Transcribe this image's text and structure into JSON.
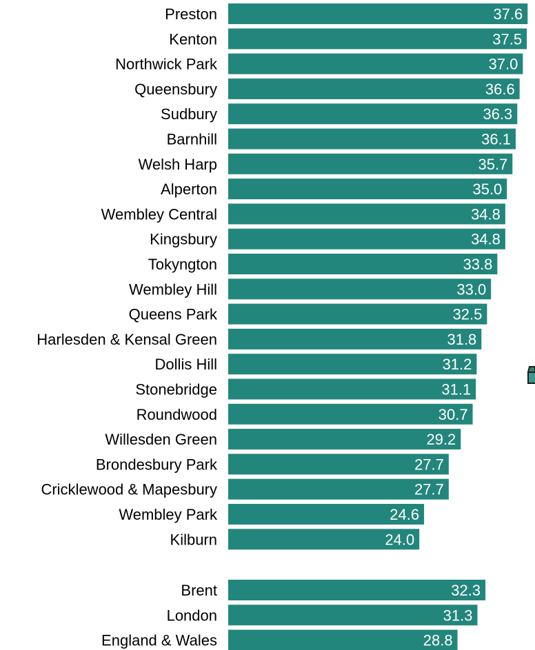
{
  "chart_data": {
    "type": "bar",
    "orientation": "horizontal",
    "bar_color": "#23867c",
    "value_label_color": "#ffffff",
    "grid": false,
    "legend": "none",
    "xlim": [
      0,
      40
    ],
    "groups": [
      {
        "categories": [
          "Preston",
          "Kenton",
          "Northwick Park",
          "Queensbury",
          "Sudbury",
          "Barnhill",
          "Welsh Harp",
          "Alperton",
          "Wembley Central",
          "Kingsbury",
          "Tokyngton",
          "Wembley Hill",
          "Queens Park",
          "Harlesden & Kensal Green",
          "Dollis Hill",
          "Stonebridge",
          "Roundwood",
          "Willesden Green",
          "Brondesbury Park",
          "Cricklewood & Mapesbury",
          "Wembley Park",
          "Kilburn"
        ],
        "values": [
          37.6,
          37.5,
          37.0,
          36.6,
          36.3,
          36.1,
          35.7,
          35.0,
          34.8,
          34.8,
          33.8,
          33.0,
          32.5,
          31.8,
          31.2,
          31.1,
          30.7,
          29.2,
          27.7,
          27.7,
          24.6,
          24.0
        ]
      },
      {
        "categories": [
          "Brent",
          "London",
          "England & Wales"
        ],
        "values": [
          32.3,
          31.3,
          28.8
        ]
      }
    ]
  }
}
